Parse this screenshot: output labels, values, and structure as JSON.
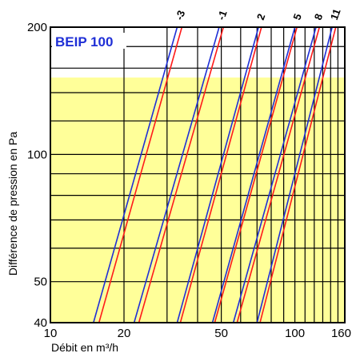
{
  "chart_data": {
    "type": "line",
    "title": "BEIP 100",
    "xlabel": "Débit en m³/h",
    "ylabel": "Différence de pression en Pa",
    "xscale": "log",
    "yscale": "log",
    "xlim": [
      10,
      160
    ],
    "ylim": [
      40,
      200
    ],
    "x_ticks": [
      10,
      20,
      50,
      100,
      160
    ],
    "y_ticks": [
      40,
      50,
      100,
      200
    ],
    "grid": true,
    "shaded_region_y": [
      40,
      152
    ],
    "colors": {
      "shade": "#ffff99",
      "series_a": "#1f2fd6",
      "series_b": "#ff1a1a",
      "title": "#1f2fd6",
      "grid": "#000000"
    },
    "series": [
      {
        "name": "-3",
        "color_a_x": [
          15,
          33
        ],
        "color_b_x": [
          15.8,
          34.5
        ]
      },
      {
        "name": "-1",
        "color_a_x": [
          22,
          49
        ],
        "color_b_x": [
          23,
          51
        ]
      },
      {
        "name": "2",
        "color_a_x": [
          33,
          71
        ],
        "color_b_x": [
          34,
          73
        ]
      },
      {
        "name": "5",
        "color_a_x": [
          46,
          100
        ],
        "color_b_x": [
          47,
          102
        ]
      },
      {
        "name": "8",
        "color_a_x": [
          56,
          122
        ],
        "color_b_x": [
          58,
          126
        ]
      },
      {
        "name": "11",
        "color_a_x": [
          70,
          142
        ],
        "color_b_x": [
          72,
          147
        ]
      }
    ],
    "series_y_range": [
      40,
      200
    ]
  }
}
